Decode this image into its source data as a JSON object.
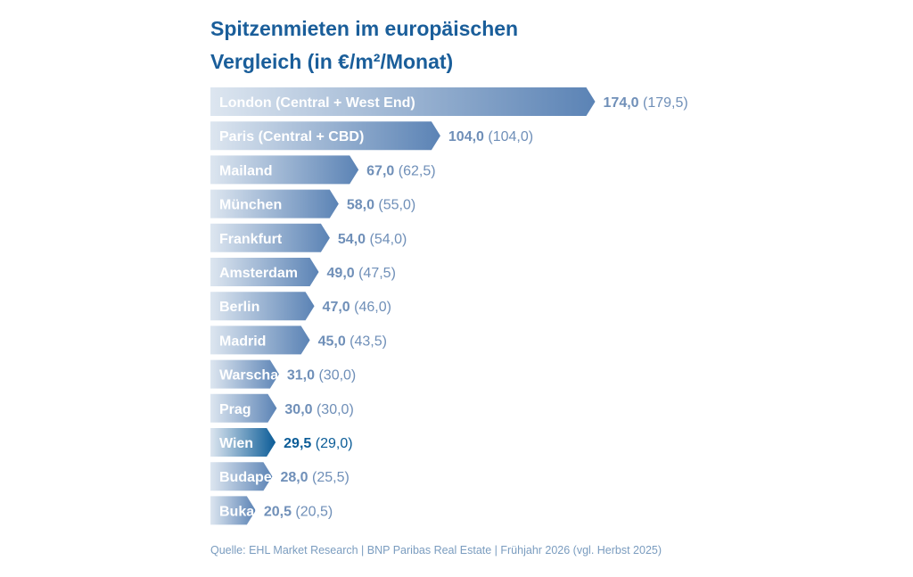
{
  "title_line1": "Spitzenmieten im europäischen",
  "title_line2": "Vergleich (in €/m²/Monat)",
  "source": "Quelle: EHL Market Research | BNP Paribas Real Estate | Frühjahr 2026 (vgl. Herbst 2025)",
  "colors": {
    "title": "#1a5e9a",
    "bar_light": "#dde6f0",
    "bar_dark": "#5b83b5",
    "highlight_dark": "#0b5c97",
    "value_text": "#6f8fb8",
    "highlight_text": "#0b5c97",
    "source_text": "#7a9cbf"
  },
  "chart_data": {
    "type": "bar",
    "orientation": "horizontal",
    "categories": [
      "London (Central + West End)",
      "Paris (Central + CBD)",
      "Mailand",
      "München",
      "Frankfurt",
      "Amsterdam",
      "Berlin",
      "Madrid",
      "Warschau",
      "Prag",
      "Wien",
      "Budapest",
      "Bukarest"
    ],
    "series": [
      {
        "values": [
          174.0,
          104.0,
          67.0,
          58.0,
          54.0,
          49.0,
          47.0,
          45.0,
          31.0,
          30.0,
          29.5,
          28.0,
          20.5
        ]
      },
      {
        "values": [
          179.5,
          104.0,
          62.5,
          55.0,
          54.0,
          47.5,
          46.0,
          43.5,
          30.0,
          30.0,
          29.0,
          25.5,
          20.5
        ]
      }
    ],
    "value_labels": [
      "174,0",
      "104,0",
      "67,0",
      "58,0",
      "54,0",
      "49,0",
      "47,0",
      "45,0",
      "31,0",
      "30,0",
      "29,5",
      "28,0",
      "20,5"
    ],
    "previous_labels": [
      "(179,5)",
      "(104,0)",
      "(62,5)",
      "(55,0)",
      "(54,0)",
      "(47,5)",
      "(46,0)",
      "(43,5)",
      "(30,0)",
      "(30,0)",
      "(29,0)",
      "(25,5)",
      "(20,5)"
    ],
    "highlight": "Wien"
  }
}
